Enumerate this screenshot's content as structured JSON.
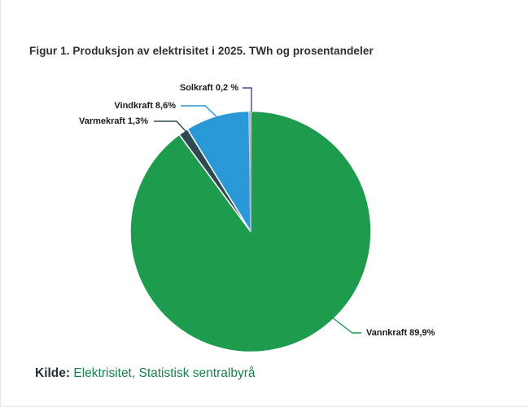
{
  "title": "Figur 1. Produksjon av elektrisitet i 2025. TWh og prosentandeler",
  "source": {
    "label": "Kilde:",
    "text": "Elektrisitet, Statistisk sentralbyrå"
  },
  "colors": {
    "vannkraft_green": "#1e9c4e",
    "vindkraft_blue": "#2899d6",
    "varmekraft_dark": "#2d4a52",
    "solkraft_gray": "#a8b1c8",
    "solkraft_leader_navy": "#3c4d96",
    "source_link_green": "#16824f",
    "title_text": "#2e2e2e",
    "label_text": "#1a1a1a",
    "background": "#ffffff",
    "slice_gap": "#ffffff"
  },
  "chart_data": {
    "type": "pie",
    "title": "Figur 1. Produksjon av elektrisitet i 2025. TWh og prosentandeler",
    "unit": "TWh og prosentandeler",
    "legend_position": "none (direct labels with leader lines)",
    "direction": "clockwise",
    "start_angle_deg": 0,
    "slices": [
      {
        "label": "Vannkraft",
        "value_pct": 89.9,
        "display": "Vannkraft 89,9%",
        "color": "#1e9c4e"
      },
      {
        "label": "Varmekraft",
        "value_pct": 1.3,
        "display": "Varmekraft 1,3%",
        "color": "#2d4a52"
      },
      {
        "label": "Vindkraft",
        "value_pct": 8.6,
        "display": "Vindkraft 8,6%",
        "color": "#2899d6"
      },
      {
        "label": "Solkraft",
        "value_pct": 0.2,
        "display": "Solkraft 0,2 %",
        "color": "#a8b1c8",
        "leader_color": "#3c4d96"
      }
    ]
  }
}
